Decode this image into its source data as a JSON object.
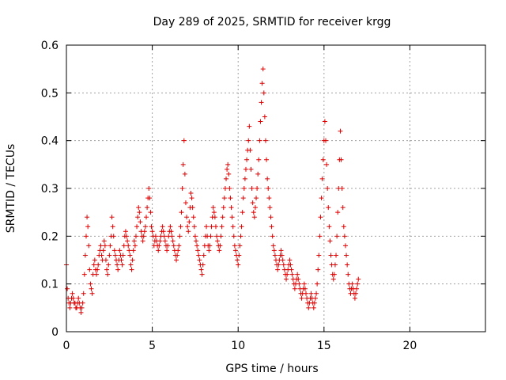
{
  "chart_data": {
    "type": "scatter",
    "title": "Day 289 of 2025, SRMTID for receiver krgg",
    "xlabel": "GPS time / hours",
    "ylabel": "SRMTID / TECUs",
    "xlim": [
      0,
      24.4
    ],
    "ylim": [
      0,
      0.6
    ],
    "x_ticks": [
      0,
      5,
      10,
      15,
      20
    ],
    "y_ticks": [
      0,
      0.1,
      0.2,
      0.3,
      0.4,
      0.5,
      0.6
    ],
    "x_tick_labels": [
      "0",
      "5",
      "10",
      "15",
      "20"
    ],
    "y_tick_labels": [
      "0",
      "0.1",
      "0.2",
      "0.3",
      "0.4",
      "0.5",
      "0.6"
    ],
    "grid": true,
    "marker": "plus",
    "color": "#dd0000",
    "x_start": 0.0,
    "x_step": 0.05,
    "series": [
      {
        "name": "SRMTID",
        "values": [
          0.14,
          0.09,
          0.07,
          0.06,
          0.05,
          0.06,
          0.07,
          0.08,
          0.07,
          0.06,
          0.06,
          0.05,
          0.05,
          0.06,
          0.07,
          0.06,
          0.05,
          0.04,
          0.05,
          0.06,
          0.08,
          0.12,
          0.16,
          0.2,
          0.24,
          0.22,
          0.18,
          0.13,
          0.1,
          0.09,
          0.08,
          0.12,
          0.14,
          0.15,
          0.13,
          0.12,
          0.13,
          0.14,
          0.16,
          0.17,
          0.18,
          0.16,
          0.15,
          0.17,
          0.19,
          0.18,
          0.15,
          0.13,
          0.12,
          0.14,
          0.16,
          0.18,
          0.2,
          0.24,
          0.22,
          0.2,
          0.17,
          0.16,
          0.15,
          0.14,
          0.13,
          0.15,
          0.17,
          0.16,
          0.15,
          0.14,
          0.16,
          0.18,
          0.2,
          0.21,
          0.2,
          0.19,
          0.18,
          0.17,
          0.16,
          0.14,
          0.13,
          0.15,
          0.17,
          0.19,
          0.18,
          0.2,
          0.22,
          0.24,
          0.26,
          0.25,
          0.23,
          0.21,
          0.2,
          0.19,
          0.2,
          0.21,
          0.22,
          0.24,
          0.26,
          0.28,
          0.3,
          0.28,
          0.25,
          0.22,
          0.21,
          0.2,
          0.18,
          0.19,
          0.2,
          0.19,
          0.18,
          0.17,
          0.18,
          0.19,
          0.2,
          0.21,
          0.22,
          0.21,
          0.2,
          0.19,
          0.18,
          0.17,
          0.18,
          0.2,
          0.21,
          0.22,
          0.21,
          0.2,
          0.19,
          0.18,
          0.17,
          0.16,
          0.15,
          0.16,
          0.17,
          0.18,
          0.2,
          0.22,
          0.25,
          0.3,
          0.35,
          0.4,
          0.33,
          0.27,
          0.24,
          0.22,
          0.21,
          0.23,
          0.26,
          0.29,
          0.28,
          0.26,
          0.24,
          0.22,
          0.2,
          0.19,
          0.18,
          0.17,
          0.16,
          0.15,
          0.14,
          0.13,
          0.12,
          0.14,
          0.16,
          0.18,
          0.2,
          0.22,
          0.2,
          0.18,
          0.17,
          0.18,
          0.2,
          0.22,
          0.24,
          0.26,
          0.25,
          0.24,
          0.22,
          0.2,
          0.19,
          0.18,
          0.17,
          0.18,
          0.2,
          0.22,
          0.24,
          0.26,
          0.28,
          0.3,
          0.32,
          0.34,
          0.35,
          0.33,
          0.3,
          0.28,
          0.26,
          0.24,
          0.22,
          0.2,
          0.18,
          0.17,
          0.16,
          0.15,
          0.14,
          0.16,
          0.18,
          0.2,
          0.22,
          0.25,
          0.28,
          0.3,
          0.32,
          0.34,
          0.36,
          0.38,
          0.4,
          0.43,
          0.38,
          0.34,
          0.3,
          0.27,
          0.25,
          0.24,
          0.26,
          0.28,
          0.3,
          0.33,
          0.36,
          0.4,
          0.44,
          0.48,
          0.52,
          0.55,
          0.5,
          0.45,
          0.4,
          0.36,
          0.32,
          0.3,
          0.28,
          0.26,
          0.24,
          0.22,
          0.2,
          0.18,
          0.17,
          0.16,
          0.15,
          0.14,
          0.13,
          0.14,
          0.15,
          0.16,
          0.17,
          0.16,
          0.15,
          0.14,
          0.13,
          0.12,
          0.11,
          0.12,
          0.13,
          0.14,
          0.15,
          0.14,
          0.13,
          0.12,
          0.11,
          0.1,
          0.09,
          0.1,
          0.11,
          0.12,
          0.11,
          0.1,
          0.09,
          0.08,
          0.07,
          0.08,
          0.09,
          0.1,
          0.09,
          0.08,
          0.07,
          0.06,
          0.05,
          0.06,
          0.07,
          0.08,
          0.07,
          0.06,
          0.05,
          0.06,
          0.07,
          0.08,
          0.1,
          0.13,
          0.16,
          0.2,
          0.24,
          0.28,
          0.32,
          0.36,
          0.4,
          0.44,
          0.4,
          0.35,
          0.3,
          0.26,
          0.22,
          0.19,
          0.16,
          0.14,
          0.12,
          0.11,
          0.12,
          0.14,
          0.16,
          0.2,
          0.25,
          0.3,
          0.36,
          0.42,
          0.36,
          0.3,
          0.26,
          0.22,
          0.2,
          0.18,
          0.16,
          0.14,
          0.12,
          0.1,
          0.09,
          0.08,
          0.09,
          0.1,
          0.09,
          0.08,
          0.07,
          0.08,
          0.09,
          0.1,
          0.11
        ]
      }
    ]
  }
}
